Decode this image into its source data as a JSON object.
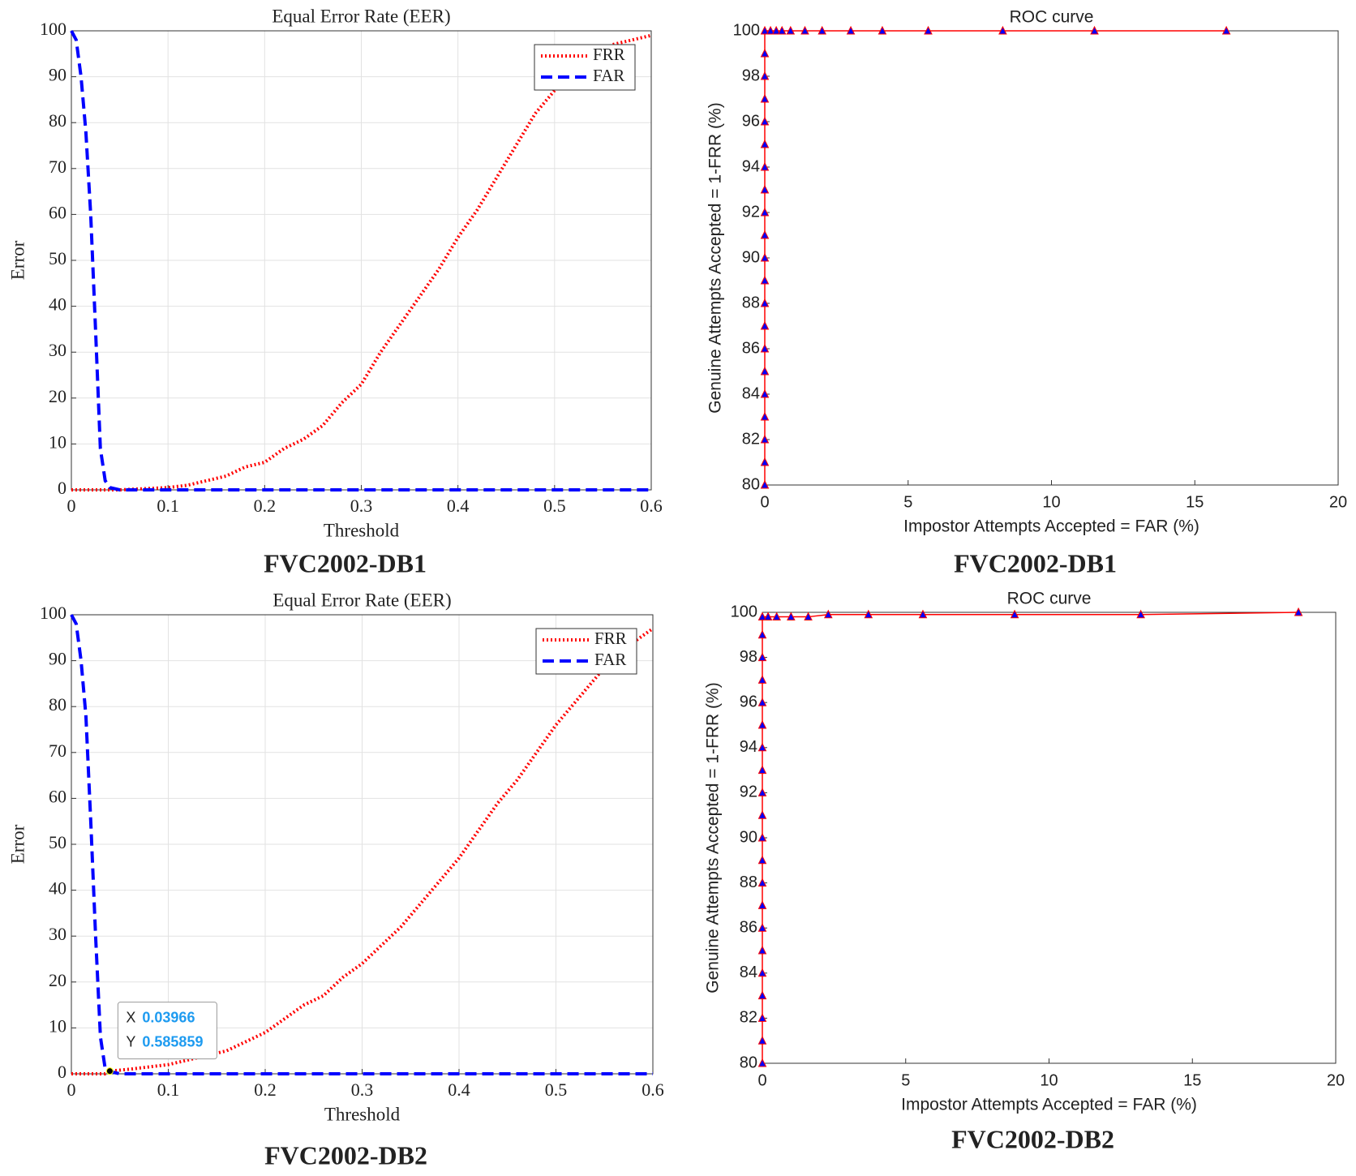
{
  "chart_data": [
    {
      "type": "line",
      "font": "serif",
      "title": "Equal Error Rate (EER)",
      "xlabel": "Threshold",
      "ylabel": "Error",
      "caption": "FVC2002-DB1",
      "x": [
        0,
        0.005,
        0.01,
        0.015,
        0.02,
        0.025,
        0.03,
        0.035,
        0.04,
        0.05,
        0.06,
        0.08,
        0.1,
        0.12,
        0.14,
        0.16,
        0.18,
        0.2,
        0.22,
        0.24,
        0.26,
        0.28,
        0.3,
        0.32,
        0.34,
        0.36,
        0.38,
        0.4,
        0.42,
        0.44,
        0.46,
        0.48,
        0.5,
        0.52,
        0.54,
        0.56,
        0.58,
        0.6
      ],
      "series": [
        {
          "name": "FRR",
          "color": "#ff0000",
          "dash": "dotted",
          "values": [
            0,
            0,
            0,
            0,
            0,
            0,
            0,
            0,
            0,
            0,
            0.1,
            0.3,
            0.5,
            1,
            2,
            3,
            5,
            6,
            9,
            11,
            14,
            19,
            23,
            30,
            36,
            42,
            48,
            55,
            61,
            68,
            75,
            82,
            87,
            92,
            95,
            97,
            98,
            99
          ]
        },
        {
          "name": "FAR",
          "color": "#0000ff",
          "dash": "dashed",
          "values": [
            100,
            98,
            90,
            78,
            60,
            35,
            9,
            2,
            0.5,
            0,
            0,
            0,
            0,
            0,
            0,
            0,
            0,
            0,
            0,
            0,
            0,
            0,
            0,
            0,
            0,
            0,
            0,
            0,
            0,
            0,
            0,
            0,
            0,
            0,
            0,
            0,
            0,
            0
          ]
        }
      ],
      "xlim": [
        0,
        0.6
      ],
      "xticks": [
        0,
        0.1,
        0.2,
        0.3,
        0.4,
        0.5,
        0.6
      ],
      "ylim": [
        0,
        100
      ],
      "yticks": [
        0,
        10,
        20,
        30,
        40,
        50,
        60,
        70,
        80,
        90,
        100
      ],
      "grid": true,
      "legend": "upper right"
    },
    {
      "type": "line",
      "font": "sans-serif",
      "marker": "triangle",
      "title": "ROC curve",
      "xlabel": "Impostor Attempts Accepted = FAR (%)",
      "ylabel": "Genuine Attempts Accepted = 1-FRR (%)",
      "caption": "FVC2002-DB1",
      "x": [
        0,
        0,
        0,
        0,
        0,
        0,
        0,
        0,
        0,
        0,
        0,
        0,
        0,
        0,
        0,
        0,
        0,
        0,
        0,
        0,
        0,
        0.2,
        0.4,
        0.6,
        0.9,
        1.4,
        2,
        3,
        4.1,
        5.7,
        8.3,
        11.5,
        16.1
      ],
      "series": [
        {
          "name": "ROC",
          "color": "#ff0000",
          "marker_color": "#0000ff",
          "values": [
            80,
            81,
            82,
            83,
            84,
            85,
            86,
            87,
            88,
            89,
            90,
            91,
            92,
            93,
            94,
            95,
            96,
            97,
            98,
            99,
            100,
            100,
            100,
            100,
            100,
            100,
            100,
            100,
            100,
            100,
            100,
            100,
            100
          ]
        }
      ],
      "xlim": [
        0,
        20
      ],
      "xticks": [
        0,
        5,
        10,
        15,
        20
      ],
      "ylim": [
        80,
        100
      ],
      "yticks": [
        80,
        82,
        84,
        86,
        88,
        90,
        92,
        94,
        96,
        98,
        100
      ],
      "grid": false
    },
    {
      "type": "line",
      "font": "serif",
      "title": "Equal Error Rate (EER)",
      "xlabel": "Threshold",
      "ylabel": "Error",
      "caption": "FVC2002-DB2",
      "x": [
        0,
        0.005,
        0.01,
        0.015,
        0.02,
        0.025,
        0.03,
        0.035,
        0.04,
        0.05,
        0.06,
        0.08,
        0.1,
        0.12,
        0.14,
        0.16,
        0.18,
        0.2,
        0.22,
        0.24,
        0.26,
        0.28,
        0.3,
        0.32,
        0.34,
        0.36,
        0.38,
        0.4,
        0.42,
        0.44,
        0.46,
        0.48,
        0.5,
        0.52,
        0.54,
        0.56,
        0.58,
        0.6
      ],
      "series": [
        {
          "name": "FRR",
          "color": "#ff0000",
          "dash": "dotted",
          "values": [
            0,
            0,
            0,
            0,
            0,
            0,
            0,
            0,
            0.6,
            0.8,
            1,
            1.5,
            2,
            3,
            4,
            5,
            7,
            9,
            12,
            15,
            17,
            21,
            24,
            28,
            32,
            37,
            42,
            47,
            53,
            59,
            64,
            70,
            76,
            81,
            86,
            91,
            94,
            97
          ]
        },
        {
          "name": "FAR",
          "color": "#0000ff",
          "dash": "dashed",
          "values": [
            100,
            98,
            90,
            78,
            55,
            30,
            8,
            1,
            0.5,
            0,
            0,
            0,
            0,
            0,
            0,
            0,
            0,
            0,
            0,
            0,
            0,
            0,
            0,
            0,
            0,
            0,
            0,
            0,
            0,
            0,
            0,
            0,
            0,
            0,
            0,
            0,
            0,
            0
          ]
        }
      ],
      "datatip": {
        "x_label": "X",
        "x": 0.03966,
        "y_label": "Y",
        "y": 0.585859
      },
      "xlim": [
        0,
        0.6
      ],
      "xticks": [
        0,
        0.1,
        0.2,
        0.3,
        0.4,
        0.5,
        0.6
      ],
      "ylim": [
        0,
        100
      ],
      "yticks": [
        0,
        10,
        20,
        30,
        40,
        50,
        60,
        70,
        80,
        90,
        100
      ],
      "grid": true,
      "legend": "upper right"
    },
    {
      "type": "line",
      "font": "sans-serif",
      "marker": "triangle",
      "title": "ROC curve",
      "xlabel": "Impostor Attempts Accepted = FAR (%)",
      "ylabel": "Genuine Attempts Accepted = 1-FRR (%)",
      "caption": "FVC2002-DB2",
      "x": [
        0,
        0,
        0,
        0,
        0,
        0,
        0,
        0,
        0,
        0,
        0,
        0,
        0,
        0,
        0,
        0,
        0,
        0,
        0,
        0,
        0,
        0.2,
        0.5,
        1,
        1.6,
        2.3,
        3.7,
        5.6,
        8.8,
        13.2,
        18.7
      ],
      "series": [
        {
          "name": "ROC",
          "color": "#ff0000",
          "marker_color": "#0000ff",
          "values": [
            80,
            81,
            82,
            83,
            84,
            85,
            86,
            87,
            88,
            89,
            90,
            91,
            92,
            93,
            94,
            95,
            96,
            97,
            98,
            99,
            99.8,
            99.8,
            99.8,
            99.8,
            99.8,
            99.9,
            99.9,
            99.9,
            99.9,
            99.9,
            100
          ]
        }
      ],
      "xlim": [
        0,
        20
      ],
      "xticks": [
        0,
        5,
        10,
        15,
        20
      ],
      "ylim": [
        80,
        100
      ],
      "yticks": [
        80,
        82,
        84,
        86,
        88,
        90,
        92,
        94,
        96,
        98,
        100
      ],
      "grid": false
    }
  ]
}
